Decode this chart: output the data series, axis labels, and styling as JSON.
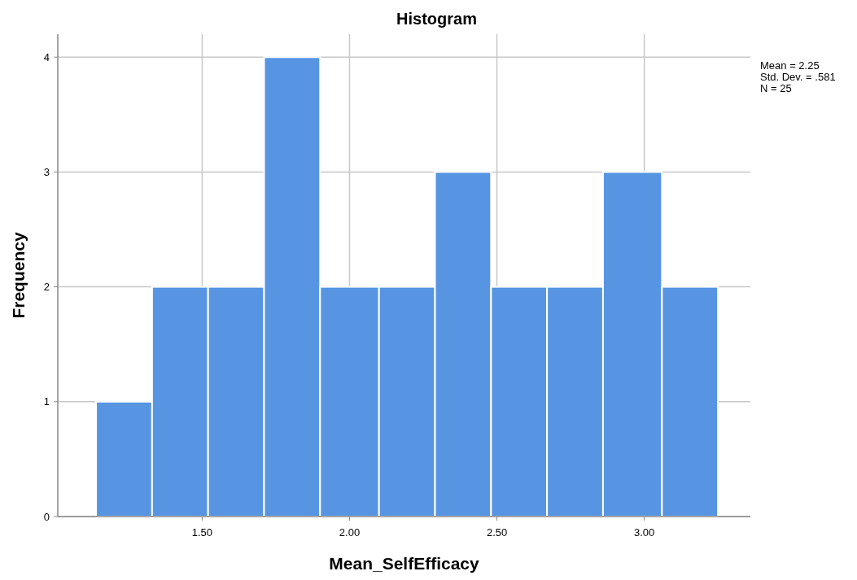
{
  "chart_data": {
    "type": "histogram",
    "title": "Histogram",
    "xlabel": "Mean_SelfEfficacy",
    "ylabel": "Frequency",
    "bins": [
      1.14,
      1.33,
      1.52,
      1.71,
      1.9,
      2.1,
      2.29,
      2.48,
      2.67,
      2.86,
      3.06,
      3.25
    ],
    "values": [
      1,
      2,
      2,
      4,
      2,
      2,
      3,
      2,
      2,
      3,
      2
    ],
    "color": "#5795e3",
    "xlim": [
      1.01,
      3.36
    ],
    "ylim": [
      0,
      4.2
    ],
    "xticks": [
      {
        "value": 1.5,
        "label": "1.50"
      },
      {
        "value": 2,
        "label": "2.00"
      },
      {
        "value": 2.5,
        "label": "2.50"
      },
      {
        "value": 3,
        "label": "3.00"
      }
    ],
    "yticks": [
      0,
      1,
      2,
      3,
      4
    ],
    "grid": true,
    "annotations": [
      "Mean = 2.25",
      "Std. Dev. = .581",
      "N = 25"
    ]
  }
}
